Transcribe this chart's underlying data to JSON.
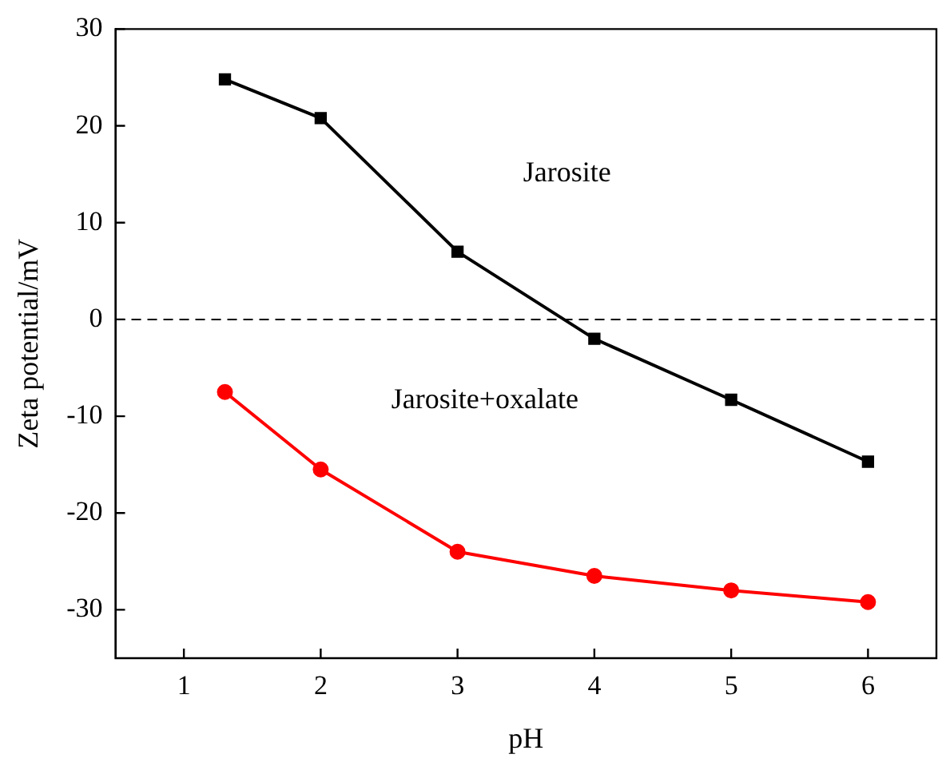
{
  "chart_data": {
    "type": "line",
    "xlabel": "pH",
    "ylabel": "Zeta potential/mV",
    "xlim": [
      0.5,
      6.5
    ],
    "xticks": [
      1,
      2,
      3,
      4,
      5,
      6
    ],
    "ylim": [
      -35,
      30
    ],
    "yticks": [
      -30,
      -20,
      -10,
      0,
      10,
      20,
      30
    ],
    "grid": false,
    "legend": false,
    "line_style": "solid",
    "series": [
      {
        "color": "#000000",
        "marker": "square",
        "x": [
          1.3,
          2,
          3,
          4,
          5,
          6
        ],
        "values": [
          24.8,
          20.8,
          7,
          -2,
          -8.3,
          -14.7
        ]
      },
      {
        "color": "#ff0000",
        "marker": "circle",
        "x": [
          1.3,
          2,
          3,
          4,
          5,
          6
        ],
        "values": [
          -7.5,
          -15.5,
          -24,
          -26.5,
          -28,
          -29.2
        ]
      }
    ],
    "ref_lines": [
      {
        "axis": "y",
        "value": 0,
        "label": null,
        "line_style": "dashed",
        "color": "#000000"
      }
    ],
    "annotations": [
      "Jarosite",
      "Jarosite+oxalate"
    ]
  }
}
